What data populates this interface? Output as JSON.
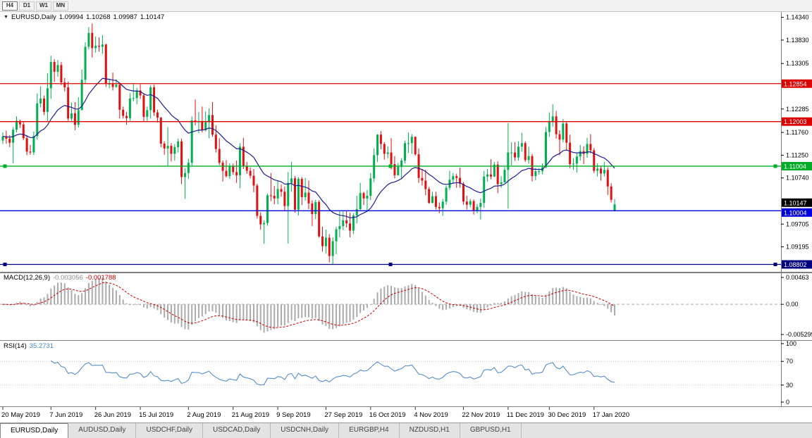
{
  "toolbar": {
    "timeframes": [
      {
        "label": "H4",
        "active": true
      },
      {
        "label": "D1",
        "active": false
      },
      {
        "label": "W1",
        "active": false
      },
      {
        "label": "MN",
        "active": false
      }
    ]
  },
  "chart": {
    "title": {
      "dropdown_icon": "▼",
      "symbol": "EURUSD,Daily",
      "open": "1.09994",
      "high": "1.10268",
      "low": "1.09987",
      "close": "1.10147"
    }
  },
  "chart_data": {
    "type": "candlestick",
    "symbol": "EURUSD",
    "timeframe": "Daily",
    "current_bar": {
      "open": 1.09994,
      "high": 1.10268,
      "low": 1.09987,
      "close": 1.10147
    },
    "colors": {
      "up": "#00b050",
      "down": "#e01010",
      "ma": "#1c1c8f",
      "background": "#ffffff",
      "pane_border": "#808080"
    },
    "price_axis": {
      "min": 1.0862,
      "max": 1.1446,
      "ticks": [
        "1.14340",
        "1.13830",
        "1.13305",
        "1.12285",
        "1.11760",
        "1.11250",
        "1.10740",
        "1.09705",
        "1.09195"
      ]
    },
    "ma_overlay": {
      "method": "ema",
      "period": 20,
      "color": "#1c1c8f"
    },
    "hlines": [
      {
        "price": 1.12854,
        "label": "1.12854",
        "color": "#dd0000",
        "selected": false
      },
      {
        "price": 1.12003,
        "label": "1.12003",
        "color": "#dd0000",
        "selected": false
      },
      {
        "price": 1.11004,
        "label": "1.11004",
        "color": "#00ad28",
        "selected": true
      },
      {
        "price": 1.10004,
        "label": "1.10004",
        "color": "#0000dd",
        "selected": false
      },
      {
        "price": 1.08802,
        "label": "1.08802",
        "color": "#000080",
        "selected": true
      }
    ],
    "current_price": {
      "label": "1.10147",
      "value": 1.10147,
      "box_color": "#000000"
    },
    "x_axis": [
      {
        "label": "20 May 2019",
        "i": 0
      },
      {
        "label": "7 Jun 2019",
        "i": 14
      },
      {
        "label": "26 Jun 2019",
        "i": 27
      },
      {
        "label": "15 Jul 2019",
        "i": 40
      },
      {
        "label": "2 Aug 2019",
        "i": 54
      },
      {
        "label": "21 Aug 2019",
        "i": 67
      },
      {
        "label": "9 Sep 2019",
        "i": 80
      },
      {
        "label": "27 Sep 2019",
        "i": 94
      },
      {
        "label": "16 Oct 2019",
        "i": 107
      },
      {
        "label": "4 Nov 2019",
        "i": 120
      },
      {
        "label": "22 Nov 2019",
        "i": 134
      },
      {
        "label": "11 Dec 2019",
        "i": 147
      },
      {
        "label": "30 Dec 2019",
        "i": 159
      },
      {
        "label": "17 Jan 2020",
        "i": 172
      }
    ],
    "indicators": [
      {
        "name": "MACD",
        "label": "MACD(12,26,9)",
        "values": [
          "-0.003056",
          "-0.001788"
        ],
        "params": {
          "fast": 12,
          "slow": 26,
          "signal": 9
        },
        "scale_max": 0.00463,
        "scale_min": -0.005299,
        "axis": {
          "top": "0.00463",
          "zero": "0.00",
          "bottom": "-0.005299"
        },
        "colors": {
          "histogram": "#ababab",
          "signal": "#cc0000"
        }
      },
      {
        "name": "RSI",
        "label": "RSI(14)",
        "value": "35.2731",
        "period": 14,
        "axis": [
          "100",
          "70",
          "30",
          "0"
        ],
        "levels": [
          70,
          30
        ],
        "color": "#4584c6"
      }
    ],
    "ohlc": [
      [
        1.1158,
        1.1176,
        1.115,
        1.1167
      ],
      [
        1.1167,
        1.118,
        1.1151,
        1.1162
      ],
      [
        1.1162,
        1.117,
        1.1143,
        1.1153
      ],
      [
        1.1153,
        1.1188,
        1.1107,
        1.1182
      ],
      [
        1.1182,
        1.1212,
        1.1176,
        1.1202
      ],
      [
        1.1202,
        1.1205,
        1.1186,
        1.1194
      ],
      [
        1.1194,
        1.12,
        1.1159,
        1.1163
      ],
      [
        1.1163,
        1.117,
        1.1125,
        1.1133
      ],
      [
        1.1133,
        1.1148,
        1.1126,
        1.1131
      ],
      [
        1.1131,
        1.1178,
        1.1125,
        1.1168
      ],
      [
        1.1168,
        1.1263,
        1.116,
        1.1241
      ],
      [
        1.1241,
        1.1279,
        1.1232,
        1.1252
      ],
      [
        1.1252,
        1.1259,
        1.1215,
        1.1222
      ],
      [
        1.1222,
        1.1309,
        1.1201,
        1.1275
      ],
      [
        1.1275,
        1.1348,
        1.1251,
        1.1334
      ],
      [
        1.1334,
        1.134,
        1.1289,
        1.1312
      ],
      [
        1.1312,
        1.1338,
        1.1301,
        1.1327
      ],
      [
        1.1327,
        1.1334,
        1.1282,
        1.1288
      ],
      [
        1.1288,
        1.1298,
        1.1268,
        1.1277
      ],
      [
        1.1277,
        1.129,
        1.1202,
        1.1207
      ],
      [
        1.1207,
        1.1243,
        1.1202,
        1.1219
      ],
      [
        1.1219,
        1.1244,
        1.1181,
        1.1193
      ],
      [
        1.1193,
        1.1255,
        1.1187,
        1.1226
      ],
      [
        1.1226,
        1.1317,
        1.1226,
        1.1294
      ],
      [
        1.1294,
        1.1378,
        1.1286,
        1.1368
      ],
      [
        1.1368,
        1.1412,
        1.1362,
        1.1399
      ],
      [
        1.1399,
        1.142,
        1.1344,
        1.1365
      ],
      [
        1.1365,
        1.1391,
        1.1355,
        1.137
      ],
      [
        1.137,
        1.1389,
        1.1357,
        1.1368
      ],
      [
        1.1368,
        1.1394,
        1.1352,
        1.1373
      ],
      [
        1.1373,
        1.1375,
        1.1278,
        1.1285
      ],
      [
        1.1285,
        1.1296,
        1.1275,
        1.1285
      ],
      [
        1.1285,
        1.131,
        1.127,
        1.1278
      ],
      [
        1.1278,
        1.1295,
        1.1276,
        1.1283
      ],
      [
        1.1283,
        1.1288,
        1.1207,
        1.1227
      ],
      [
        1.1227,
        1.1234,
        1.1207,
        1.1213
      ],
      [
        1.1213,
        1.1222,
        1.1193,
        1.1208
      ],
      [
        1.1208,
        1.1264,
        1.1202,
        1.1252
      ],
      [
        1.1252,
        1.1286,
        1.1246,
        1.1253
      ],
      [
        1.1253,
        1.1276,
        1.1239,
        1.127
      ],
      [
        1.127,
        1.1284,
        1.1251,
        1.1259
      ],
      [
        1.1259,
        1.1263,
        1.1201,
        1.1211
      ],
      [
        1.1211,
        1.1234,
        1.1202,
        1.1226
      ],
      [
        1.1226,
        1.1282,
        1.1207,
        1.1277
      ],
      [
        1.1277,
        1.1283,
        1.1213,
        1.1221
      ],
      [
        1.1221,
        1.1227,
        1.1198,
        1.1209
      ],
      [
        1.1209,
        1.1211,
        1.1143,
        1.1151
      ],
      [
        1.1151,
        1.1156,
        1.1126,
        1.114
      ],
      [
        1.114,
        1.1188,
        1.1101,
        1.1146
      ],
      [
        1.1146,
        1.1152,
        1.1111,
        1.1128
      ],
      [
        1.1128,
        1.115,
        1.1113,
        1.1143
      ],
      [
        1.1143,
        1.1162,
        1.1131,
        1.1156
      ],
      [
        1.1156,
        1.1162,
        1.106,
        1.1076
      ],
      [
        1.1076,
        1.1096,
        1.1027,
        1.1085
      ],
      [
        1.1085,
        1.1117,
        1.1072,
        1.1108
      ],
      [
        1.1108,
        1.1212,
        1.1101,
        1.1203
      ],
      [
        1.1203,
        1.125,
        1.1192,
        1.12
      ],
      [
        1.12,
        1.1222,
        1.1174,
        1.12
      ],
      [
        1.12,
        1.1234,
        1.1176,
        1.1181
      ],
      [
        1.1181,
        1.1223,
        1.1178,
        1.1199
      ],
      [
        1.1199,
        1.123,
        1.1163,
        1.1215
      ],
      [
        1.1215,
        1.1244,
        1.1166,
        1.1171
      ],
      [
        1.1171,
        1.1192,
        1.1131,
        1.1139
      ],
      [
        1.1139,
        1.1163,
        1.1103,
        1.1108
      ],
      [
        1.1108,
        1.1113,
        1.1066,
        1.109
      ],
      [
        1.109,
        1.1114,
        1.1075,
        1.1078
      ],
      [
        1.1078,
        1.1107,
        1.1072,
        1.11
      ],
      [
        1.11,
        1.1106,
        1.1081,
        1.1087
      ],
      [
        1.1087,
        1.1113,
        1.1063,
        1.108
      ],
      [
        1.108,
        1.1152,
        1.1051,
        1.1144
      ],
      [
        1.1144,
        1.1164,
        1.1094,
        1.1101
      ],
      [
        1.1101,
        1.111,
        1.1083,
        1.109
      ],
      [
        1.109,
        1.1098,
        1.1073,
        1.1079
      ],
      [
        1.1079,
        1.1094,
        1.1042,
        1.1057
      ],
      [
        1.1057,
        1.1061,
        1.0983,
        1.0989
      ],
      [
        1.0989,
        1.0997,
        1.0958,
        1.097
      ],
      [
        1.097,
        1.0979,
        1.0926,
        1.0973
      ],
      [
        1.0973,
        1.1039,
        1.0967,
        1.1035
      ],
      [
        1.1035,
        1.1085,
        1.1022,
        1.1034
      ],
      [
        1.1034,
        1.1056,
        1.1015,
        1.1028
      ],
      [
        1.1028,
        1.1068,
        1.1015,
        1.1049
      ],
      [
        1.1049,
        1.1059,
        1.1032,
        1.1043
      ],
      [
        1.1043,
        1.1055,
        1.0999,
        1.1011
      ],
      [
        1.1011,
        1.1087,
        1.0927,
        1.1063
      ],
      [
        1.1063,
        1.111,
        1.1043,
        1.1073
      ],
      [
        1.1073,
        1.1078,
        1.0996,
        1.1003
      ],
      [
        1.1003,
        1.1076,
        1.099,
        1.1072
      ],
      [
        1.1072,
        1.1076,
        1.1013,
        1.1031
      ],
      [
        1.1031,
        1.1074,
        1.1023,
        1.1041
      ],
      [
        1.1041,
        1.1068,
        1.1004,
        1.1017
      ],
      [
        1.1017,
        1.1024,
        1.0966,
        1.0993
      ],
      [
        1.0993,
        1.1025,
        1.0982,
        1.102
      ],
      [
        1.102,
        1.1024,
        1.094,
        1.0943
      ],
      [
        1.0943,
        1.0965,
        1.0909,
        1.0921
      ],
      [
        1.0921,
        1.0958,
        1.0904,
        1.094
      ],
      [
        1.094,
        1.0948,
        1.0885,
        1.0899
      ],
      [
        1.0899,
        1.0941,
        1.0879,
        1.0932
      ],
      [
        1.0932,
        1.0965,
        1.0903,
        1.0959
      ],
      [
        1.0959,
        1.0999,
        1.0941,
        1.0966
      ],
      [
        1.0966,
        1.0999,
        1.0957,
        1.0979
      ],
      [
        1.0979,
        1.1,
        1.0963,
        1.0972
      ],
      [
        1.0972,
        1.0996,
        1.0941,
        1.0956
      ],
      [
        1.0956,
        1.0995,
        1.0948,
        1.099
      ],
      [
        1.099,
        1.1034,
        1.0972,
        1.1004
      ],
      [
        1.1004,
        1.1063,
        1.1002,
        1.104
      ],
      [
        1.104,
        1.1043,
        1.1013,
        1.1028
      ],
      [
        1.1028,
        1.1047,
        1.1001,
        1.1034
      ],
      [
        1.1034,
        1.1085,
        1.1024,
        1.1073
      ],
      [
        1.1073,
        1.114,
        1.1065,
        1.1125
      ],
      [
        1.1125,
        1.1172,
        1.111,
        1.1171
      ],
      [
        1.1171,
        1.1179,
        1.1138,
        1.115
      ],
      [
        1.115,
        1.1154,
        1.1115,
        1.1128
      ],
      [
        1.1128,
        1.1145,
        1.1118,
        1.1131
      ],
      [
        1.1131,
        1.1163,
        1.1093,
        1.1105
      ],
      [
        1.1105,
        1.1123,
        1.1073,
        1.108
      ],
      [
        1.108,
        1.1108,
        1.1079,
        1.1099
      ],
      [
        1.1099,
        1.1118,
        1.1073,
        1.1113
      ],
      [
        1.1113,
        1.1158,
        1.1106,
        1.1152
      ],
      [
        1.1152,
        1.1176,
        1.113,
        1.1152
      ],
      [
        1.1152,
        1.1172,
        1.1128,
        1.1166
      ],
      [
        1.1166,
        1.1167,
        1.1124,
        1.1127
      ],
      [
        1.1127,
        1.114,
        1.1063,
        1.1074
      ],
      [
        1.1074,
        1.1094,
        1.1057,
        1.1068
      ],
      [
        1.1068,
        1.1092,
        1.1035,
        1.1049
      ],
      [
        1.1049,
        1.1054,
        1.1016,
        1.1018
      ],
      [
        1.1018,
        1.1043,
        1.1017,
        1.1033
      ],
      [
        1.1033,
        1.1043,
        1.1003,
        1.1009
      ],
      [
        1.1009,
        1.1019,
        1.0995,
        1.1006
      ],
      [
        1.1006,
        1.1027,
        1.0989,
        1.1021
      ],
      [
        1.1021,
        1.1057,
        1.1014,
        1.1052
      ],
      [
        1.1052,
        1.109,
        1.1047,
        1.107
      ],
      [
        1.107,
        1.1085,
        1.1062,
        1.1078
      ],
      [
        1.1078,
        1.1083,
        1.1052,
        1.1074
      ],
      [
        1.1074,
        1.1097,
        1.1052,
        1.1061
      ],
      [
        1.1061,
        1.1065,
        1.1014,
        1.1021
      ],
      [
        1.1021,
        1.1034,
        1.1003,
        1.1014
      ],
      [
        1.1014,
        1.1027,
        1.1008,
        1.1022
      ],
      [
        1.1022,
        1.1026,
        1.0992,
        1.1001
      ],
      [
        1.1001,
        1.1016,
        1.0995,
        1.1009
      ],
      [
        1.1009,
        1.1028,
        1.0981,
        1.1018
      ],
      [
        1.1018,
        1.109,
        1.1007,
        1.1077
      ],
      [
        1.1077,
        1.1094,
        1.1066,
        1.1082
      ],
      [
        1.1082,
        1.1116,
        1.1071,
        1.1077
      ],
      [
        1.1077,
        1.111,
        1.1076,
        1.1104
      ],
      [
        1.1104,
        1.1111,
        1.104,
        1.106
      ],
      [
        1.106,
        1.1078,
        1.1052,
        1.1064
      ],
      [
        1.1064,
        1.1098,
        1.1063,
        1.1092
      ],
      [
        1.1092,
        1.1197,
        1.1005,
        1.1131
      ],
      [
        1.1131,
        1.1154,
        1.1102,
        1.1131
      ],
      [
        1.1131,
        1.1154,
        1.1112,
        1.112
      ],
      [
        1.112,
        1.1156,
        1.1113,
        1.1144
      ],
      [
        1.1144,
        1.1175,
        1.1133,
        1.1152
      ],
      [
        1.1152,
        1.1156,
        1.111,
        1.1114
      ],
      [
        1.1114,
        1.1144,
        1.1106,
        1.1123
      ],
      [
        1.1123,
        1.1128,
        1.1066,
        1.1078
      ],
      [
        1.1078,
        1.1096,
        1.1069,
        1.1089
      ],
      [
        1.1089,
        1.1096,
        1.1081,
        1.1089
      ],
      [
        1.1089,
        1.1107,
        1.1082,
        1.1098
      ],
      [
        1.1098,
        1.1188,
        1.1096,
        1.1177
      ],
      [
        1.1177,
        1.1221,
        1.1166,
        1.1199
      ],
      [
        1.1199,
        1.1239,
        1.1189,
        1.1212
      ],
      [
        1.1212,
        1.1224,
        1.1162,
        1.1172
      ],
      [
        1.1172,
        1.1181,
        1.1125,
        1.116
      ],
      [
        1.116,
        1.1206,
        1.1154,
        1.1196
      ],
      [
        1.1196,
        1.1199,
        1.1135,
        1.1153
      ],
      [
        1.1153,
        1.1171,
        1.1096,
        1.1105
      ],
      [
        1.1105,
        1.1118,
        1.1092,
        1.1106
      ],
      [
        1.1106,
        1.113,
        1.1086,
        1.1122
      ],
      [
        1.1122,
        1.1148,
        1.1113,
        1.1134
      ],
      [
        1.1134,
        1.1145,
        1.1105,
        1.1128
      ],
      [
        1.1128,
        1.1164,
        1.1119,
        1.115
      ],
      [
        1.115,
        1.1172,
        1.1129,
        1.1136
      ],
      [
        1.1136,
        1.1141,
        1.1085,
        1.109
      ],
      [
        1.109,
        1.1107,
        1.1077,
        1.1095
      ],
      [
        1.1095,
        1.1101,
        1.1068,
        1.1084
      ],
      [
        1.1084,
        1.111,
        1.1077,
        1.1092
      ],
      [
        1.1092,
        1.1098,
        1.1036,
        1.1055
      ],
      [
        1.1055,
        1.1062,
        1.1019,
        1.1025
      ],
      [
        1.09994,
        1.10268,
        1.09987,
        1.10147
      ]
    ]
  },
  "tabs": [
    {
      "label": "EURUSD,Daily",
      "active": true
    },
    {
      "label": "AUDUSD,Daily",
      "active": false
    },
    {
      "label": "USDCHF,Daily",
      "active": false
    },
    {
      "label": "USDCAD,Daily",
      "active": false
    },
    {
      "label": "USDCNH,Daily",
      "active": false
    },
    {
      "label": "EURGBP,H4",
      "active": false
    },
    {
      "label": "NZDUSD,H1",
      "active": false
    },
    {
      "label": "GBPUSD,H1",
      "active": false
    }
  ]
}
